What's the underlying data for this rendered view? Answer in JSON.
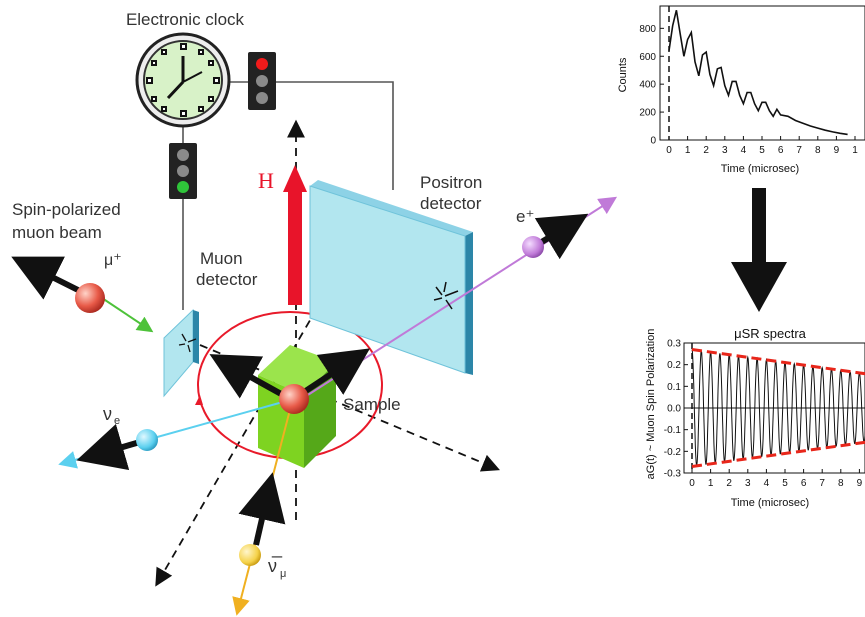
{
  "diagram": {
    "clock_label": "Electronic clock",
    "beam_label_line1": "Spin-polarized",
    "beam_label_line2": "muon beam",
    "muon_label": "μ⁺",
    "muon_detector_line1": "Muon",
    "muon_detector_line2": "detector",
    "positron_detector_line1": "Positron",
    "positron_detector_line2": "detector",
    "positron_label": "e⁺",
    "field_label": "H",
    "sample_label": "Sample",
    "nu_e_label": "ν",
    "nu_e_sub": "e",
    "nu_mu_label": "ν̅",
    "nu_mu_sub": "μ",
    "colors": {
      "field_arrow": "#e8142a",
      "detector_face": "#b2e6ef",
      "detector_edge": "#3aa7c9",
      "sample": "#7ed321",
      "muon": "#e85a48",
      "positron": "#c07ad8",
      "nu_e": "#5bd0ef",
      "nu_mu": "#f5d24a",
      "clock_face": "#d8f2c8"
    }
  },
  "chart_data": [
    {
      "type": "line",
      "title": "",
      "xlabel": "Time (microsec)",
      "ylabel": "Counts",
      "xlim": [
        -0.3,
        10
      ],
      "ylim": [
        0,
        960
      ],
      "xticks": [
        "0",
        "1",
        "2",
        "3",
        "4",
        "5",
        "6",
        "7",
        "8",
        "9",
        "1"
      ],
      "yticks": [
        "0",
        "200",
        "400",
        "600",
        "800"
      ],
      "series": [
        {
          "x": [
            0,
            0.2,
            0.4,
            0.6,
            0.8,
            1.0,
            1.2,
            1.4,
            1.6,
            1.8,
            2.0,
            2.2,
            2.4,
            2.6,
            2.8,
            3.0,
            3.2,
            3.4,
            3.6,
            3.8,
            4.0,
            4.2,
            4.4,
            4.6,
            4.8,
            5.0,
            5.2,
            5.4,
            5.6,
            5.8,
            6.0,
            6.4,
            6.8,
            7.2,
            7.6,
            8.0,
            8.4,
            8.8,
            9.2,
            9.6
          ],
          "y": [
            640,
            820,
            930,
            760,
            600,
            720,
            770,
            560,
            460,
            610,
            630,
            470,
            390,
            510,
            520,
            390,
            320,
            420,
            420,
            320,
            260,
            340,
            340,
            260,
            210,
            270,
            270,
            210,
            170,
            220,
            180,
            170,
            140,
            120,
            100,
            85,
            70,
            58,
            48,
            40
          ]
        }
      ]
    },
    {
      "type": "line",
      "title": "μSR spectra",
      "xlabel": "Time (microsec)",
      "ylabel": "aG(t) ~ Muon Spin Polarization",
      "xlim": [
        -0.3,
        10
      ],
      "ylim": [
        -0.3,
        0.3
      ],
      "xticks": [
        "0",
        "1",
        "2",
        "3",
        "4",
        "5",
        "6",
        "7",
        "8",
        "9",
        "1"
      ],
      "yticks": [
        "-0.3",
        "-0.2",
        "-0.1",
        "0.0",
        "0.1",
        "0.2",
        "0.3"
      ],
      "series": [
        {
          "name": "oscillation",
          "amplitude0": 0.27,
          "amplitude_end": 0.15,
          "period": 0.5
        },
        {
          "name": "envelope",
          "x": [
            0,
            10
          ],
          "y_upper": [
            0.27,
            0.15
          ],
          "y_lower": [
            -0.27,
            -0.15
          ]
        }
      ]
    }
  ]
}
